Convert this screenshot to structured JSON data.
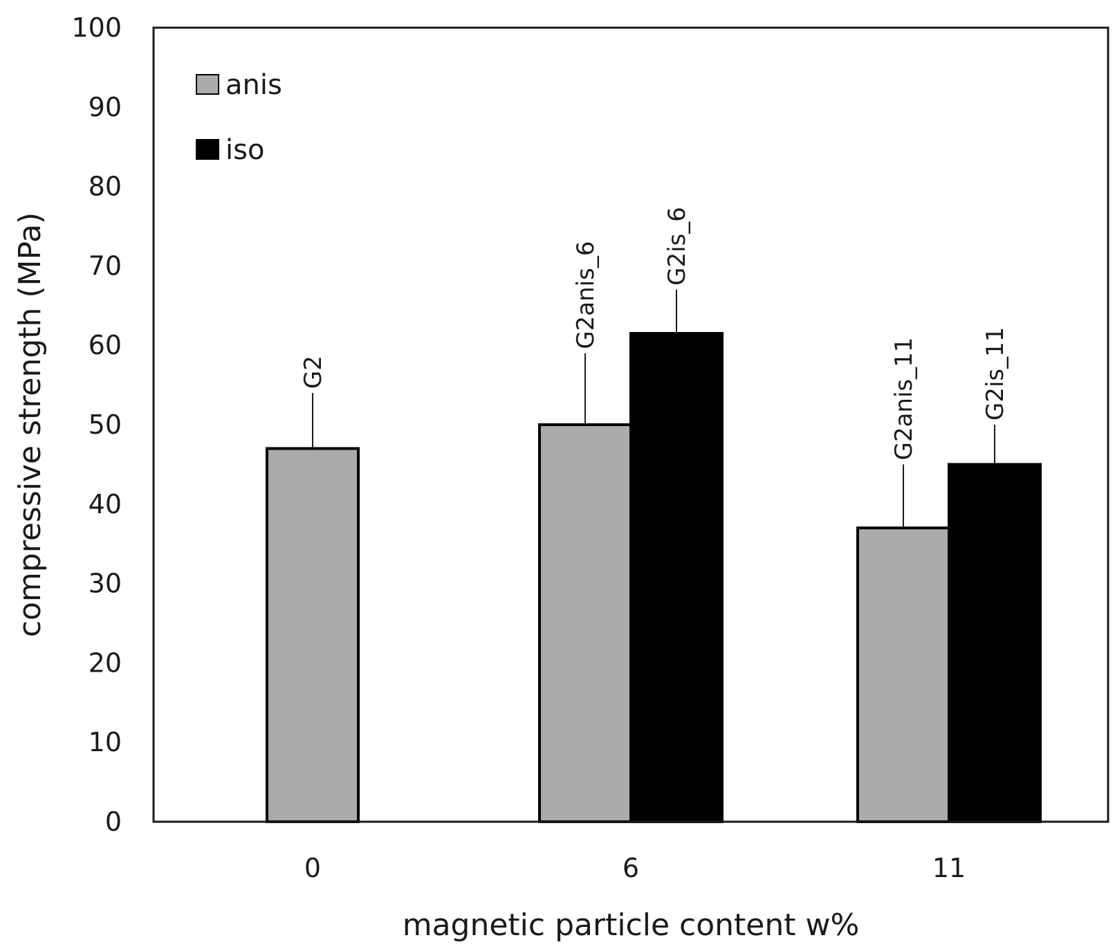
{
  "chart_data": {
    "type": "bar",
    "title": "",
    "xlabel": "magnetic particle content w%",
    "ylabel": "compressive strength (MPa)",
    "ylim": [
      0,
      100
    ],
    "yticks": [
      0,
      10,
      20,
      30,
      40,
      50,
      60,
      70,
      80,
      90,
      100
    ],
    "categories": [
      "0",
      "6",
      "11"
    ],
    "series": [
      {
        "name": "anis",
        "color": "#ababab",
        "values": [
          47,
          50,
          37
        ],
        "error_upper": [
          54,
          59,
          45
        ],
        "labels": [
          "G2",
          "G2anis_6",
          "G2anis_11"
        ]
      },
      {
        "name": "iso",
        "color": "#000000",
        "values": [
          null,
          61.5,
          45
        ],
        "error_upper": [
          null,
          67,
          50
        ],
        "labels": [
          null,
          "G2is_6",
          "G2is_11"
        ]
      }
    ],
    "legend": {
      "position": "top-left"
    },
    "grid": false
  }
}
